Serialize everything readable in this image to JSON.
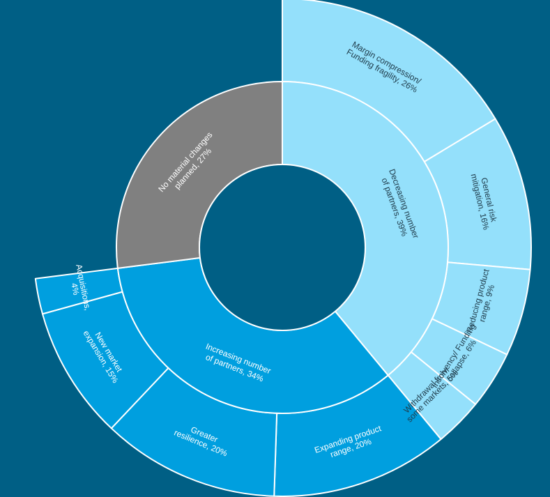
{
  "chart_data": {
    "type": "sunburst",
    "colors": {
      "background": "#005f85",
      "increasing": "#009fdf",
      "decreasing": "#94e0fb",
      "no_change": "#808080",
      "label_light": "#ffffff",
      "label_dark": "#1f3b4a"
    },
    "segments": [
      {
        "label": "Decreasing number of partners, 39%",
        "value": 39,
        "color_key": "decreasing",
        "children": [
          {
            "label": "Margin compression/ Funding fragility, 26%",
            "value": 26
          },
          {
            "label": "General risk mitigation, 16%",
            "value": 16
          },
          {
            "label": "Reducing product range, 9%",
            "value": 9
          },
          {
            "label": "Insolvency/ Funding collapse, 6%",
            "value": 6
          },
          {
            "label": "Withdrawal from some markets, 5%",
            "value": 5
          }
        ]
      },
      {
        "label": "Increasing number of partners, 34%",
        "value": 34,
        "color_key": "increasing",
        "children": [
          {
            "label": "Expanding product range, 20%",
            "value": 20
          },
          {
            "label": "Greater resilience, 20%",
            "value": 20
          },
          {
            "label": "New market expansion, 15%",
            "value": 15
          },
          {
            "label": "Acquisitions, 4%",
            "value": 4
          }
        ]
      },
      {
        "label": "No material changes planned, 27%",
        "value": 27,
        "color_key": "no_change",
        "children": []
      }
    ]
  }
}
